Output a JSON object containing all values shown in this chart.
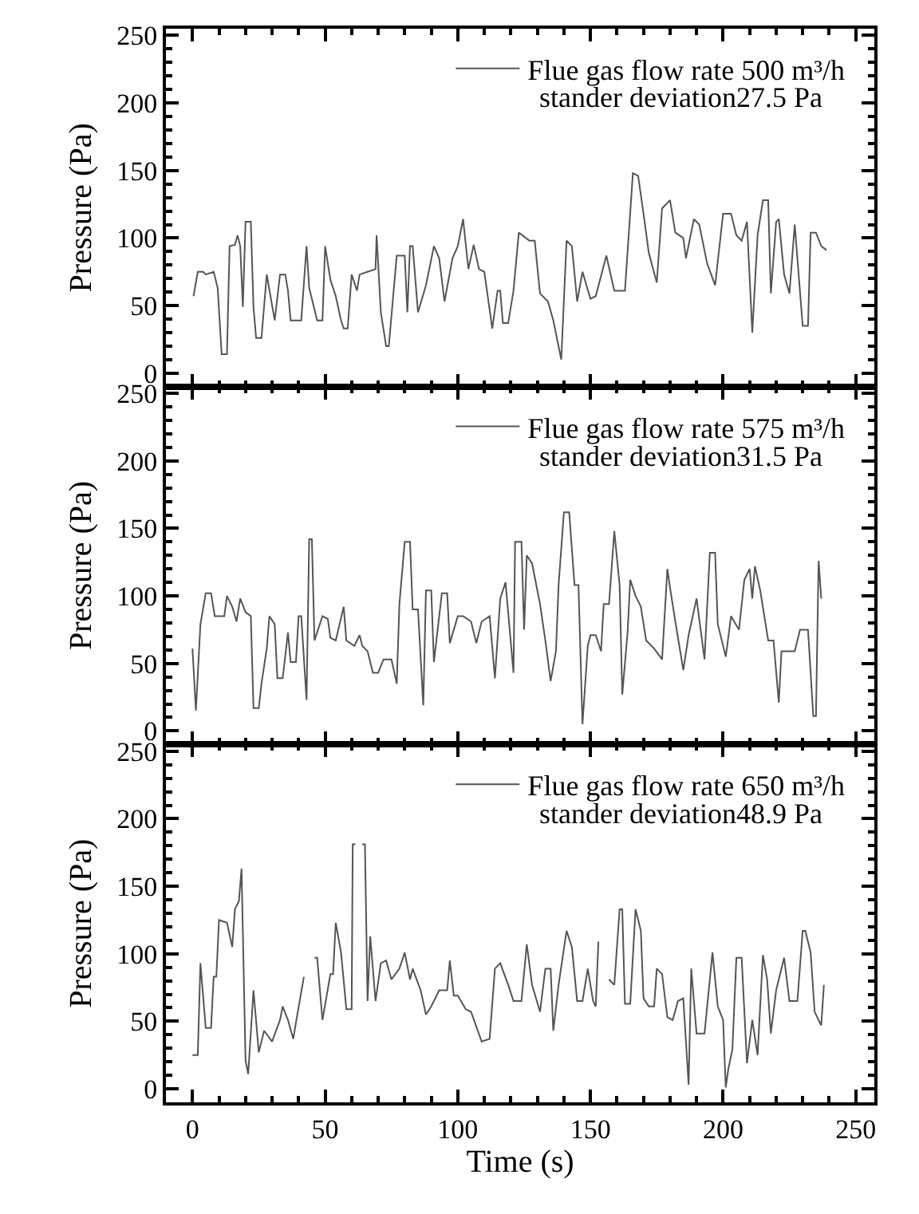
{
  "chart_data": [
    {
      "type": "line",
      "ylabel": "Pressure (Pa)",
      "xlim": [
        -10,
        257
      ],
      "ylim": [
        -10,
        255
      ],
      "xticks": [
        0,
        50,
        100,
        150,
        200,
        250
      ],
      "yticks": [
        0,
        50,
        100,
        150,
        200,
        250
      ],
      "tick_labels": "y",
      "legend": "top right",
      "line_style": "solid",
      "annotations": [
        "stander deviation27.5 Pa"
      ],
      "series": [
        {
          "name": "Flue gas flow rate 500 m³/h",
          "color": "#555555",
          "x": [
            0.4,
            2,
            4,
            5,
            8,
            9.5,
            11,
            13,
            14,
            16,
            17,
            18,
            19,
            20,
            22,
            23,
            24,
            26,
            28,
            31,
            33,
            35,
            36,
            37,
            38.5,
            41,
            43,
            44,
            47,
            49,
            50,
            52,
            54,
            56,
            57,
            58.5,
            60,
            62,
            63,
            66,
            69,
            69.4,
            71,
            73,
            74,
            77,
            80,
            81,
            82,
            83,
            85,
            88,
            91,
            93,
            95,
            98,
            100,
            102,
            104,
            106,
            108,
            110,
            113,
            115,
            116,
            117,
            119,
            121,
            123,
            127,
            129,
            131,
            134,
            136,
            139,
            141,
            143,
            145,
            147,
            150,
            152,
            156,
            159,
            163,
            166,
            168,
            170,
            172,
            175,
            177,
            179,
            180,
            182,
            185,
            186,
            189,
            191,
            194,
            197,
            200,
            203,
            205,
            207,
            209,
            211,
            213,
            215,
            217,
            218,
            220,
            221,
            223,
            225,
            227,
            230,
            232,
            233,
            235,
            237,
            239
          ],
          "values": [
            57,
            75,
            75,
            73,
            75,
            63,
            14,
            14,
            94,
            95,
            102,
            94,
            49,
            112,
            112,
            49,
            26,
            26,
            73,
            39,
            73,
            73,
            61,
            39,
            39,
            39,
            94,
            63,
            39,
            39,
            94,
            69,
            57,
            39,
            33,
            33,
            73,
            61,
            73,
            75,
            77,
            102,
            45,
            20,
            20,
            87,
            87,
            45,
            94,
            94,
            45,
            65,
            94,
            85,
            53,
            85,
            94,
            114,
            77,
            95,
            77,
            75,
            33,
            61,
            61,
            37,
            37,
            61,
            104,
            98,
            98,
            59,
            53,
            39,
            10,
            98,
            94,
            53,
            75,
            55,
            57,
            87,
            61,
            61,
            148,
            146,
            118,
            89,
            67,
            122,
            126,
            128,
            104,
            100,
            85,
            114,
            110,
            81,
            65,
            118,
            118,
            102,
            98,
            112,
            30,
            102,
            128,
            128,
            59,
            112,
            114,
            73,
            59,
            110,
            35,
            35,
            104,
            104,
            94,
            91
          ]
        }
      ]
    },
    {
      "type": "line",
      "ylabel": "Pressure (Pa)",
      "xlim": [
        -10,
        257
      ],
      "ylim": [
        -10,
        255
      ],
      "xticks": [
        0,
        50,
        100,
        150,
        200,
        250
      ],
      "yticks": [
        0,
        50,
        100,
        150,
        200,
        250
      ],
      "tick_labels": "y",
      "legend": "top right",
      "line_style": "solid",
      "annotations": [
        "stander deviation31.5 Pa"
      ],
      "series": [
        {
          "name": "Flue gas flow rate 575 m³/h",
          "color": "#555555",
          "x": [
            0,
            1.3,
            3,
            5,
            7,
            8.4,
            12,
            13,
            15,
            16.6,
            18,
            20,
            22,
            23,
            25,
            26,
            28,
            29,
            31,
            32,
            34,
            36,
            37,
            39,
            40,
            41,
            43,
            44,
            45,
            46,
            49,
            51,
            52,
            54,
            57,
            58,
            61,
            63,
            64,
            66,
            68,
            70,
            72,
            75,
            77,
            78,
            80,
            82,
            83,
            85,
            87,
            88,
            90,
            91,
            94,
            96,
            97,
            100,
            102,
            105,
            107,
            109,
            112,
            114,
            116,
            118,
            121,
            121.6,
            124,
            125,
            126,
            128,
            131,
            133,
            135,
            137,
            138,
            140,
            142,
            144,
            145.5,
            147,
            149,
            150,
            152,
            154,
            155,
            157,
            159,
            161,
            162,
            164,
            165,
            167,
            169,
            171,
            174,
            177,
            179,
            180,
            182,
            185,
            187,
            190,
            191,
            193,
            195,
            197,
            198,
            201,
            203,
            206,
            208,
            210,
            211,
            212,
            214,
            217,
            219,
            221,
            222,
            227,
            229,
            232,
            234,
            235,
            236,
            237
          ],
          "values": [
            61,
            15,
            79,
            102,
            102,
            85,
            85,
            100,
            92,
            81,
            98,
            88,
            85,
            17,
            17,
            35,
            61,
            85,
            79,
            39,
            39,
            73,
            51,
            51,
            85,
            85,
            23,
            142,
            142,
            67,
            85,
            83,
            69,
            67,
            92,
            67,
            63,
            71,
            63,
            59,
            43,
            43,
            53,
            53,
            35,
            94,
            140,
            140,
            90,
            90,
            19,
            104,
            104,
            51,
            102,
            102,
            65,
            85,
            85,
            81,
            65,
            81,
            85,
            39,
            98,
            110,
            43,
            140,
            140,
            75,
            130,
            124,
            94,
            67,
            37,
            59,
            108,
            162,
            162,
            108,
            108,
            5,
            63,
            71,
            71,
            59,
            94,
            94,
            148,
            108,
            27,
            73,
            112,
            100,
            92,
            67,
            61,
            53,
            120,
            106,
            81,
            45,
            71,
            98,
            83,
            53,
            132,
            132,
            79,
            55,
            85,
            75,
            112,
            120,
            98,
            122,
            104,
            67,
            67,
            21,
            59,
            59,
            75,
            75,
            11,
            11,
            126,
            98
          ]
        }
      ]
    },
    {
      "type": "line",
      "xlabel": "Time (s)",
      "ylabel": "Pressure (Pa)",
      "xlim": [
        -10,
        257
      ],
      "ylim": [
        -10,
        255
      ],
      "xticks": [
        0,
        50,
        100,
        150,
        200,
        250
      ],
      "yticks": [
        0,
        50,
        100,
        150,
        200,
        250
      ],
      "legend": "top right",
      "line_style": "solid",
      "annotations": [
        "stander deviation48.9 Pa"
      ],
      "series": [
        {
          "name": "Flue gas flow rate 650 m³/h",
          "color": "#555555",
          "x": [
            0,
            2,
            3,
            5,
            7,
            8,
            9,
            10,
            13,
            15,
            16,
            17.5,
            18.5,
            20,
            21,
            23,
            25,
            27,
            30,
            33,
            34,
            36,
            38,
            39,
            42,
            43.8,
            46,
            47,
            49,
            52,
            53,
            54,
            56,
            58,
            60,
            60.4,
            61.4,
            62,
            63,
            64,
            65,
            66,
            67,
            69,
            71,
            73,
            75,
            78,
            80,
            82,
            83,
            86,
            88,
            90,
            93,
            96,
            97,
            98.5,
            100,
            103,
            105,
            109,
            112,
            114,
            116,
            119,
            121,
            124,
            126,
            128,
            131,
            133,
            135,
            136,
            138,
            141,
            143,
            145,
            147,
            149,
            151,
            152,
            153,
            155,
            156,
            157,
            159,
            161,
            162,
            163,
            165,
            167,
            169,
            170,
            172,
            174,
            175,
            177,
            179,
            181,
            183,
            185,
            187,
            188,
            190,
            193,
            196,
            198,
            200,
            201,
            202,
            203.5,
            205,
            207,
            209,
            211,
            213,
            215,
            216.6,
            218,
            220,
            223,
            225,
            228,
            230,
            231,
            233,
            234.5,
            237,
            238
          ],
          "values": [
            25,
            25,
            93,
            45,
            45,
            83,
            83,
            125,
            123,
            105,
            133,
            139,
            163,
            21,
            11,
            73,
            27,
            43,
            35,
            51,
            61,
            51,
            37,
            49,
            83,
            null,
            97,
            97,
            51,
            85,
            85,
            123,
            101,
            59,
            59,
            181,
            181,
            null,
            null,
            181,
            181,
            65,
            113,
            65,
            93,
            95,
            81,
            89,
            101,
            81,
            89,
            73,
            55,
            61,
            73,
            73,
            95,
            69,
            69,
            59,
            57,
            35,
            37,
            89,
            93,
            77,
            65,
            65,
            107,
            77,
            57,
            89,
            89,
            43,
            77,
            117,
            105,
            65,
            65,
            89,
            65,
            61,
            109,
            null,
            null,
            81,
            77,
            133,
            133,
            63,
            63,
            133,
            117,
            67,
            61,
            61,
            89,
            85,
            53,
            51,
            65,
            67,
            3,
            89,
            41,
            41,
            101,
            61,
            51,
            1,
            15,
            29,
            97,
            97,
            19,
            51,
            25,
            99,
            81,
            41,
            73,
            97,
            65,
            65,
            117,
            117,
            101,
            57,
            47,
            77
          ]
        }
      ]
    }
  ]
}
